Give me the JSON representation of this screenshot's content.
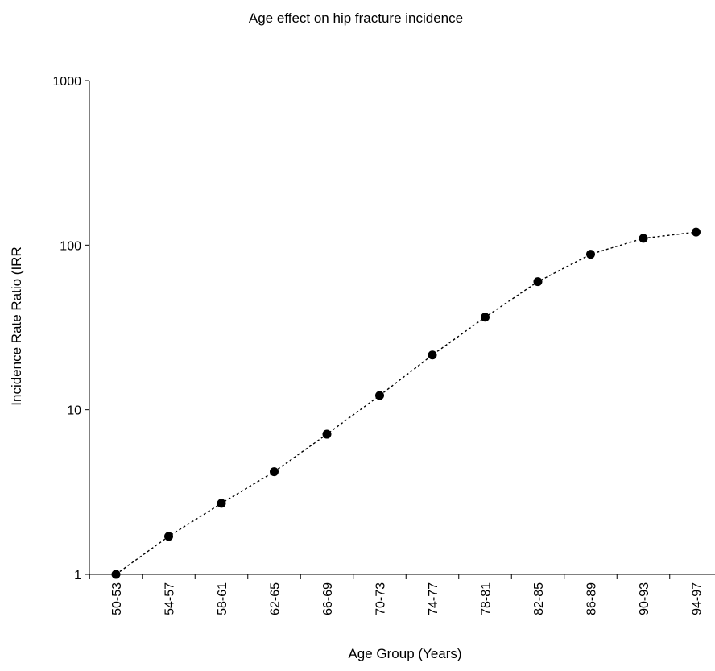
{
  "chart_data": {
    "type": "line",
    "title": "Age effect on hip fracture incidence",
    "xlabel": "Age Group (Years)",
    "ylabel": "Incidence Rate Ratio (IRR",
    "y_scale": "log",
    "ylim": [
      1,
      1000
    ],
    "y_ticks": [
      "1",
      "10",
      "100",
      "1000"
    ],
    "categories": [
      "50-53",
      "54-57",
      "58-61",
      "62-65",
      "66-69",
      "70-73",
      "74-77",
      "78-81",
      "82-85",
      "86-89",
      "90-93",
      "94-97"
    ],
    "series": [
      {
        "values": [
          1.0,
          1.7,
          2.7,
          4.2,
          7.1,
          12.2,
          21.5,
          36.5,
          60.0,
          88.0,
          110.0,
          120.0
        ],
        "line_style": "dotted",
        "marker": "circle",
        "color": "#000000"
      }
    ],
    "grid": false,
    "legend": "none"
  }
}
